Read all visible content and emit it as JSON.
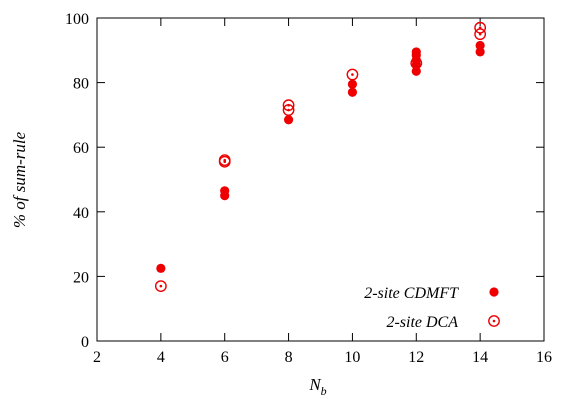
{
  "chart_data": {
    "type": "scatter",
    "xlabel": "N",
    "xlabel_subscript": "b",
    "ylabel": "% of sum-rule",
    "xlim": [
      2,
      16
    ],
    "ylim": [
      0,
      100
    ],
    "xticks": [
      2,
      4,
      6,
      8,
      10,
      12,
      14,
      16
    ],
    "yticks": [
      0,
      20,
      40,
      60,
      80,
      100
    ],
    "grid": false,
    "legend_position": "bottom-right",
    "series": [
      {
        "name": "2-site CDMFT",
        "marker": "filled-circle",
        "color": "#ee0000",
        "points": [
          {
            "x": 4,
            "y": 22.5
          },
          {
            "x": 6,
            "y": 45.0
          },
          {
            "x": 6,
            "y": 46.5
          },
          {
            "x": 8,
            "y": 68.5
          },
          {
            "x": 10,
            "y": 77.0
          },
          {
            "x": 10,
            "y": 79.5
          },
          {
            "x": 12,
            "y": 83.5
          },
          {
            "x": 12,
            "y": 85.5
          },
          {
            "x": 12,
            "y": 87.0
          },
          {
            "x": 12,
            "y": 88.5
          },
          {
            "x": 12,
            "y": 89.5
          },
          {
            "x": 14,
            "y": 89.5
          },
          {
            "x": 14,
            "y": 91.5
          }
        ]
      },
      {
        "name": "2-site DCA",
        "marker": "open-circle-dot",
        "color": "#ee0000",
        "points": [
          {
            "x": 4,
            "y": 17.0
          },
          {
            "x": 6,
            "y": 55.5
          },
          {
            "x": 6,
            "y": 56.0
          },
          {
            "x": 8,
            "y": 71.5
          },
          {
            "x": 8,
            "y": 73.0
          },
          {
            "x": 10,
            "y": 82.5
          },
          {
            "x": 12,
            "y": 86.0
          },
          {
            "x": 14,
            "y": 95.0
          },
          {
            "x": 14,
            "y": 97.0
          }
        ]
      }
    ]
  }
}
